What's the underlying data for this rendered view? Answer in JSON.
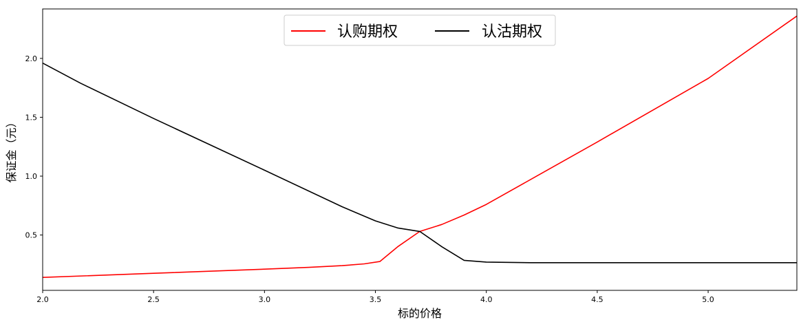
{
  "chart_data": {
    "type": "line",
    "title": "",
    "xlabel": "标的价格",
    "ylabel": "保证金（元）",
    "xlim": [
      2.0,
      5.4
    ],
    "ylim": [
      0.03,
      2.42
    ],
    "x_ticks": [
      "2.0",
      "2.5",
      "3.0",
      "3.5",
      "4.0",
      "4.5",
      "5.0"
    ],
    "x_tick_values": [
      2.0,
      2.5,
      3.0,
      3.5,
      4.0,
      4.5,
      5.0
    ],
    "y_ticks": [
      "0.5",
      "1.0",
      "1.5",
      "2.0"
    ],
    "y_tick_values": [
      0.5,
      1.0,
      1.5,
      2.0
    ],
    "grid": false,
    "legend_position": "top-center",
    "series": [
      {
        "name": "认购期权",
        "color": "#ff0000",
        "x": [
          2.0,
          2.5,
          3.0,
          3.2,
          3.35,
          3.45,
          3.52,
          3.6,
          3.7,
          3.8,
          3.9,
          4.0,
          4.5,
          5.0,
          5.4
        ],
        "y": [
          0.14,
          0.175,
          0.21,
          0.225,
          0.24,
          0.255,
          0.275,
          0.4,
          0.53,
          0.59,
          0.67,
          0.76,
          1.29,
          1.83,
          2.36
        ]
      },
      {
        "name": "认沽期权",
        "color": "#000000",
        "x": [
          2.0,
          2.17,
          2.5,
          3.0,
          3.35,
          3.5,
          3.6,
          3.7,
          3.8,
          3.9,
          4.0,
          4.2,
          4.6,
          5.4
        ],
        "y": [
          1.96,
          1.79,
          1.49,
          1.05,
          0.74,
          0.62,
          0.56,
          0.53,
          0.4,
          0.285,
          0.27,
          0.265,
          0.265,
          0.265
        ]
      }
    ]
  }
}
